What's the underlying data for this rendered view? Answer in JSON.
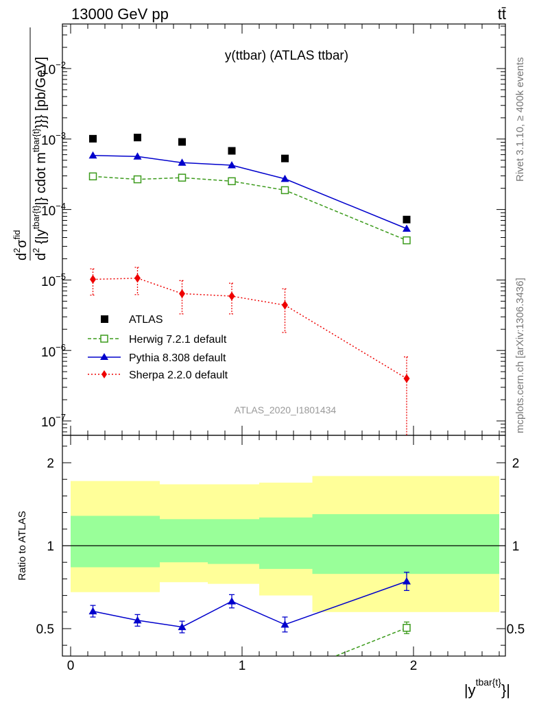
{
  "header": {
    "energy_label": "13000 GeV pp",
    "process_label": "tt̄",
    "side_label_rivet": "Rivet 3.1.10, ≥ 400k events",
    "side_label_mcplots": "mcplots.cern.ch [arXiv:1306.3436]"
  },
  "chart_data": [
    {
      "type": "line",
      "title": "y(ttbar) (ATLAS ttbar)",
      "watermark": "ATLAS_2020_I1801434",
      "ylabel_parts": [
        "d",
        "2",
        "σ",
        "fid",
        "d",
        "2",
        " {|y",
        "tbar{t}",
        "|} cdot m",
        "tbar{t}",
        "}}} [pb/GeV]"
      ],
      "yscale": "log",
      "ylim": [
        5e-08,
        0.05
      ],
      "xlim": [
        -0.05,
        2.55
      ],
      "ytick_labels": [
        {
          "base": "10",
          "exp": "−2"
        },
        {
          "base": "10",
          "exp": "−3"
        },
        {
          "base": "10",
          "exp": "−4"
        },
        {
          "base": "10",
          "exp": "−5"
        },
        {
          "base": "10",
          "exp": "−6"
        },
        {
          "base": "10",
          "exp": "−7"
        }
      ],
      "series": [
        {
          "name": "ATLAS",
          "color": "#000000",
          "marker": "square",
          "x": [
            0.13,
            0.39,
            0.65,
            0.94,
            1.25,
            1.96
          ],
          "y": [
            0.00101,
            0.00105,
            0.00091,
            0.00068,
            0.00053,
            7.2e-05
          ]
        },
        {
          "name": "Herwig 7.2.1 default",
          "color": "#3a9a1a",
          "marker": "open-square",
          "dash": "5,3",
          "x": [
            0.13,
            0.39,
            0.65,
            0.94,
            1.25,
            1.96
          ],
          "y": [
            0.000295,
            0.000268,
            0.000283,
            0.000252,
            0.000188,
            3.65e-05
          ]
        },
        {
          "name": "Pythia 8.308 default",
          "color": "#0000cc",
          "marker": "triangle",
          "x": [
            0.13,
            0.39,
            0.65,
            0.94,
            1.25,
            1.96
          ],
          "y": [
            0.000585,
            0.000565,
            0.000462,
            0.000425,
            0.000272,
            5.35e-05
          ]
        },
        {
          "name": "Sherpa 2.2.0 default",
          "color": "#ee0000",
          "marker": "diamond",
          "dash": "2,3",
          "x": [
            0.13,
            0.39,
            0.65,
            0.94,
            1.25,
            1.96
          ],
          "y": [
            1.02e-05,
            1.06e-05,
            6.4e-06,
            5.9e-06,
            4.4e-06,
            4e-07
          ],
          "err_lo": [
            4.1e-06,
            4.4e-06,
            3.1e-06,
            2.6e-06,
            2.6e-06,
            3.8e-07
          ],
          "err_hi": [
            4.2e-06,
            4.5e-06,
            3.4e-06,
            3.1e-06,
            3.1e-06,
            4.1e-07
          ]
        }
      ]
    },
    {
      "type": "line",
      "ylabel": "Ratio to ATLAS",
      "xlabel_parts": [
        "|y",
        "tbar{t}",
        "}|"
      ],
      "ylim": [
        0.35,
        2.4
      ],
      "xlim": [
        -0.05,
        2.55
      ],
      "yticks": [
        0.5,
        1,
        2
      ],
      "ytick_labels": [
        "0.5",
        "1",
        "2"
      ],
      "xticks": [
        0,
        1,
        2
      ],
      "xtick_labels": [
        "0",
        "1",
        "2"
      ],
      "reference": 1,
      "bands": [
        {
          "x0": 0.0,
          "x1": 0.52,
          "yellow": [
            0.72,
            1.39
          ],
          "green": [
            0.87,
            1.18
          ]
        },
        {
          "x0": 0.52,
          "x1": 0.8,
          "yellow": [
            0.78,
            1.37
          ],
          "green": [
            0.9,
            1.16
          ]
        },
        {
          "x0": 0.8,
          "x1": 1.1,
          "yellow": [
            0.77,
            1.37
          ],
          "green": [
            0.89,
            1.16
          ]
        },
        {
          "x0": 1.1,
          "x1": 1.41,
          "yellow": [
            0.7,
            1.38
          ],
          "green": [
            0.86,
            1.17
          ]
        },
        {
          "x0": 1.41,
          "x1": 2.5,
          "yellow": [
            0.6,
            1.42
          ],
          "green": [
            0.83,
            1.19
          ]
        }
      ],
      "series": [
        {
          "name": "Pythia 8.308 default",
          "color": "#0000cc",
          "marker": "triangle",
          "x": [
            0.13,
            0.39,
            0.65,
            0.94,
            1.25,
            1.96
          ],
          "y": [
            0.605,
            0.55,
            0.51,
            0.665,
            0.525,
            0.785
          ],
          "err": [
            0.035,
            0.035,
            0.035,
            0.04,
            0.045,
            0.055
          ]
        },
        {
          "name": "Herwig 7.2.1 default",
          "color": "#3a9a1a",
          "marker": "open-square",
          "dash": "5,3",
          "x": [
            1.46,
            1.96
          ],
          "y": [
            0.3,
            0.505
          ],
          "marker_from": 1,
          "err": [
            0,
            0.035
          ]
        }
      ]
    }
  ]
}
